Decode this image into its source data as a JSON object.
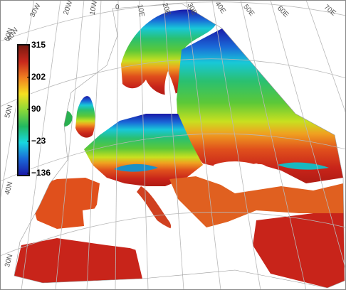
{
  "legend": {
    "ticks": [
      "315",
      "202",
      "90",
      "−23",
      "−136"
    ],
    "colors": [
      "#7a1a10",
      "#c8281c",
      "#f08020",
      "#f5e020",
      "#8ad838",
      "#22b860",
      "#18d8e0",
      "#1a6ad8",
      "#1a1aa8"
    ]
  },
  "graticule": {
    "meridian_labels": [
      "40W",
      "30W",
      "20W",
      "10W",
      "0",
      "10E",
      "20E",
      "30E",
      "40E",
      "50E",
      "60E",
      "70E"
    ],
    "parallel_labels": [
      "60N",
      "50N",
      "40N",
      "30N"
    ]
  }
}
